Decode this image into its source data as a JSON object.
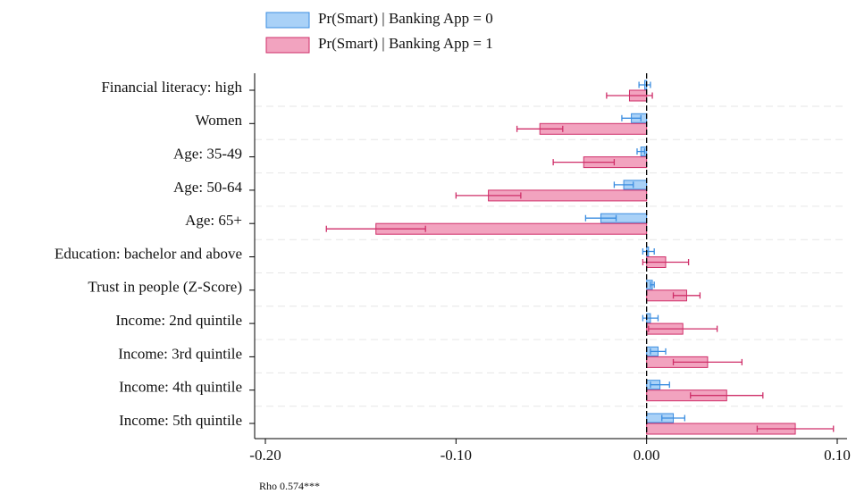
{
  "chart_data": {
    "type": "bar",
    "orientation": "horizontal",
    "categories": [
      "Financial literacy: high",
      "Women",
      "Age: 35-49",
      "Age: 50-64",
      "Age: 65+",
      "Education: bachelor and above",
      "Trust in people (Z-Score)",
      "Income: 2nd quintile",
      "Income: 3rd quintile",
      "Income: 4th quintile",
      "Income: 5th quintile"
    ],
    "series": [
      {
        "name": "Pr(Smart) | Banking App = 0",
        "color": "#a9d1f7",
        "edge": "#3b8de0",
        "values": [
          -0.001,
          -0.008,
          -0.003,
          -0.012,
          -0.024,
          0.001,
          0.003,
          0.002,
          0.006,
          0.007,
          0.014
        ],
        "errors": [
          0.003,
          0.005,
          0.002,
          0.005,
          0.008,
          0.003,
          0.001,
          0.004,
          0.004,
          0.005,
          0.006
        ]
      },
      {
        "name": "Pr(Smart) | Banking App = 1",
        "color": "#f2a3bf",
        "edge": "#cf2f69",
        "values": [
          -0.009,
          -0.056,
          -0.033,
          -0.083,
          -0.142,
          0.01,
          0.021,
          0.019,
          0.032,
          0.042,
          0.078
        ],
        "errors": [
          0.012,
          0.012,
          0.016,
          0.017,
          0.026,
          0.012,
          0.007,
          0.018,
          0.018,
          0.019,
          0.02
        ]
      }
    ],
    "xlim": [
      -0.2,
      0.1
    ],
    "xticks": [
      {
        "value": -0.2,
        "label": "-0.20"
      },
      {
        "value": -0.1,
        "label": "-0.10"
      },
      {
        "value": 0,
        "label": "0.00"
      },
      {
        "value": 0.1,
        "label": "0.10"
      }
    ],
    "annotation": "Rho 0.574***",
    "legend": "top"
  }
}
